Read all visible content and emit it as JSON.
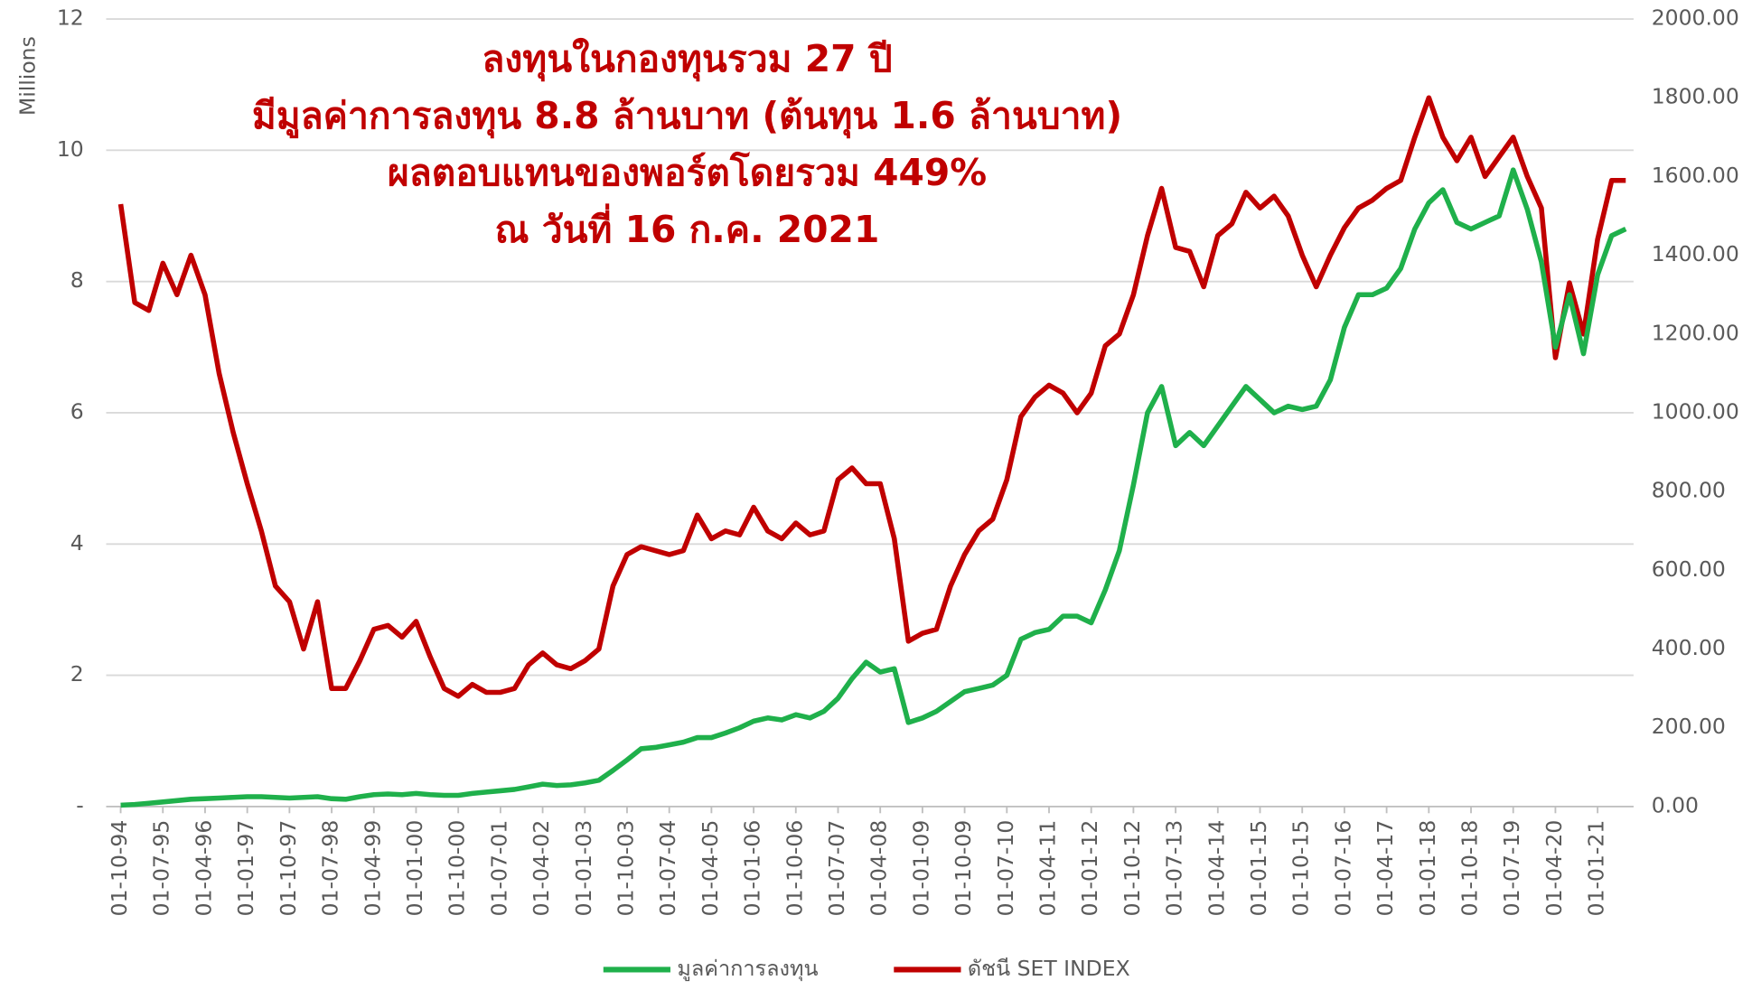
{
  "chart_data": {
    "type": "line",
    "title": [
      "ลงทุนในกองทุนรวม 27 ปี",
      "มีมูลค่าการลงทุน 8.8 ล้านบาท (ต้นทุน 1.6 ล้านบาท)",
      "ผลตอบแทนของพอร์ตโดยรวม 449%",
      "ณ วันที่ 16 ก.ค. 2021"
    ],
    "y_label": "Millions",
    "categories": [
      "01-10-94",
      null,
      null,
      "01-07-95",
      null,
      null,
      "01-04-96",
      null,
      null,
      "01-01-97",
      null,
      null,
      "01-10-97",
      null,
      null,
      "01-07-98",
      null,
      null,
      "01-04-99",
      null,
      null,
      "01-01-00",
      null,
      null,
      "01-10-00",
      null,
      null,
      "01-07-01",
      null,
      null,
      "01-04-02",
      null,
      null,
      "01-01-03",
      null,
      null,
      "01-10-03",
      null,
      null,
      "01-07-04",
      null,
      null,
      "01-04-05",
      null,
      null,
      "01-01-06",
      null,
      null,
      "01-10-06",
      null,
      null,
      "01-07-07",
      null,
      null,
      "01-04-08",
      null,
      null,
      "01-01-09",
      null,
      null,
      "01-10-09",
      null,
      null,
      "01-07-10",
      null,
      null,
      "01-04-11",
      null,
      null,
      "01-01-12",
      null,
      null,
      "01-10-12",
      null,
      null,
      "01-07-13",
      null,
      null,
      "01-04-14",
      null,
      null,
      "01-01-15",
      null,
      null,
      "01-10-15",
      null,
      null,
      "01-07-16",
      null,
      null,
      "01-04-17",
      null,
      null,
      "01-01-18",
      null,
      null,
      "01-10-18",
      null,
      null,
      "01-07-19",
      null,
      null,
      "01-04-20",
      null,
      null,
      "01-01-21",
      null,
      null
    ],
    "series": [
      {
        "name": "มูลค่าการลงทุน",
        "color": "#1fb04b",
        "axis": "y",
        "values": [
          0.02,
          0.03,
          0.05,
          0.07,
          0.09,
          0.11,
          0.12,
          0.13,
          0.14,
          0.15,
          0.15,
          0.14,
          0.13,
          0.14,
          0.15,
          0.12,
          0.11,
          0.15,
          0.18,
          0.19,
          0.18,
          0.2,
          0.18,
          0.17,
          0.17,
          0.2,
          0.22,
          0.24,
          0.26,
          0.3,
          0.34,
          0.32,
          0.33,
          0.36,
          0.4,
          0.55,
          0.71,
          0.88,
          0.9,
          0.94,
          0.98,
          1.05,
          1.05,
          1.12,
          1.2,
          1.3,
          1.35,
          1.32,
          1.4,
          1.35,
          1.45,
          1.65,
          1.95,
          2.2,
          2.05,
          2.1,
          1.28,
          1.35,
          1.45,
          1.6,
          1.75,
          1.8,
          1.85,
          2.0,
          2.55,
          2.65,
          2.7,
          2.9,
          2.9,
          2.8,
          3.3,
          3.9,
          4.9,
          6.0,
          6.4,
          5.5,
          5.7,
          5.5,
          5.8,
          6.1,
          6.4,
          6.2,
          6.0,
          6.1,
          6.05,
          6.1,
          6.5,
          7.3,
          7.8,
          7.8,
          7.9,
          8.2,
          8.8,
          9.2,
          9.4,
          8.9,
          8.8,
          8.9,
          9.0,
          9.7,
          9.1,
          8.3,
          7.0,
          7.8,
          6.9,
          8.1,
          8.7,
          8.8
        ]
      },
      {
        "name": "ดัชนี SET INDEX",
        "color": "#c00000",
        "axis": "y2",
        "values": [
          1530,
          1280,
          1260,
          1380,
          1300,
          1400,
          1300,
          1100,
          950,
          820,
          700,
          560,
          520,
          400,
          520,
          300,
          300,
          370,
          450,
          460,
          430,
          470,
          380,
          300,
          280,
          310,
          290,
          290,
          300,
          360,
          390,
          360,
          350,
          370,
          400,
          560,
          640,
          660,
          650,
          640,
          650,
          740,
          680,
          700,
          690,
          760,
          700,
          680,
          720,
          690,
          700,
          830,
          860,
          820,
          820,
          680,
          420,
          440,
          450,
          560,
          640,
          700,
          730,
          830,
          990,
          1040,
          1070,
          1050,
          1000,
          1050,
          1170,
          1200,
          1300,
          1450,
          1570,
          1420,
          1410,
          1320,
          1450,
          1480,
          1560,
          1520,
          1550,
          1500,
          1400,
          1320,
          1400,
          1470,
          1520,
          1540,
          1570,
          1590,
          1700,
          1800,
          1700,
          1640,
          1700,
          1600,
          1650,
          1700,
          1600,
          1520,
          1140,
          1330,
          1200,
          1440,
          1590,
          1590
        ]
      }
    ],
    "ylim": [
      0,
      12
    ],
    "yticks": [
      {
        "value": 0,
        "label": "-"
      },
      2,
      4,
      6,
      8,
      10,
      12
    ],
    "y2lim": [
      0,
      2000
    ],
    "y2ticks": [
      {
        "value": 0,
        "label": "0.00"
      },
      {
        "value": 200,
        "label": "200.00"
      },
      {
        "value": 400,
        "label": "400.00"
      },
      {
        "value": 600,
        "label": "600.00"
      },
      {
        "value": 800,
        "label": "800.00"
      },
      {
        "value": 1000,
        "label": "1000.00"
      },
      {
        "value": 1200,
        "label": "1200.00"
      },
      {
        "value": 1400,
        "label": "1400.00"
      },
      {
        "value": 1600,
        "label": "1600.00"
      },
      {
        "value": 1800,
        "label": "1800.00"
      },
      {
        "value": 2000,
        "label": "2000.00"
      }
    ],
    "grid": true,
    "legend": "bottom"
  }
}
